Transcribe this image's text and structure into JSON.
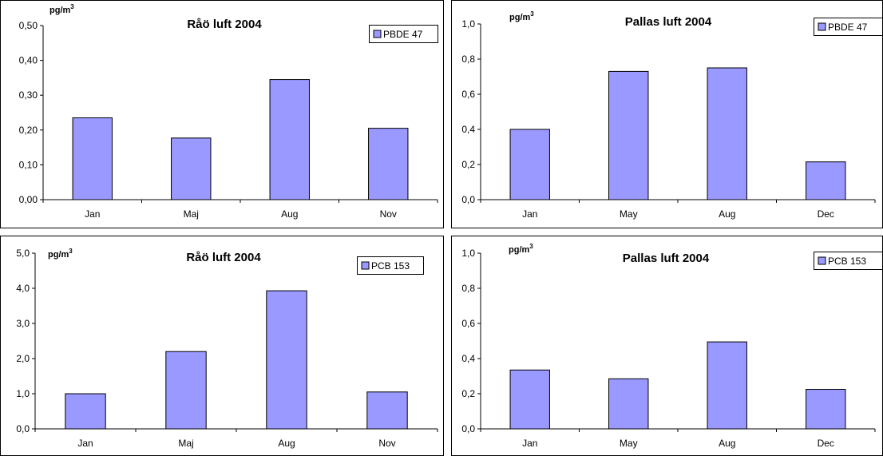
{
  "chart_data": [
    {
      "type": "bar",
      "title": "Råö luft 2004",
      "unit_label": "pg/m",
      "unit_sup": "3",
      "legend": "PBDE 47",
      "categories": [
        "Jan",
        "Maj",
        "Aug",
        "Nov"
      ],
      "values": [
        0.235,
        0.177,
        0.345,
        0.205
      ],
      "yticks": [
        "0,00",
        "0,10",
        "0,20",
        "0,30",
        "0,40",
        "0,50"
      ],
      "ylim": [
        0,
        0.5
      ],
      "bar_color": "#9999ff"
    },
    {
      "type": "bar",
      "title": "Pallas luft 2004",
      "unit_label": "pg/m",
      "unit_sup": "3",
      "legend": "PBDE 47",
      "categories": [
        "Jan",
        "May",
        "Aug",
        "Dec"
      ],
      "values": [
        0.4,
        0.73,
        0.75,
        0.215
      ],
      "yticks": [
        "0,0",
        "0,2",
        "0,4",
        "0,6",
        "0,8",
        "1,0"
      ],
      "ylim": [
        0,
        1.0
      ],
      "bar_color": "#9999ff"
    },
    {
      "type": "bar",
      "title": "Råö luft 2004",
      "unit_label": "pg/m",
      "unit_sup": "3",
      "legend": "PCB 153",
      "categories": [
        "Jan",
        "Maj",
        "Aug",
        "Nov"
      ],
      "values": [
        1.0,
        2.2,
        3.93,
        1.05
      ],
      "yticks": [
        "0,0",
        "1,0",
        "2,0",
        "3,0",
        "4,0",
        "5,0"
      ],
      "ylim": [
        0,
        5.0
      ],
      "bar_color": "#9999ff"
    },
    {
      "type": "bar",
      "title": "Pallas luft 2004",
      "unit_label": "pg/m",
      "unit_sup": "3",
      "legend": "PCB 153",
      "categories": [
        "Jan",
        "May",
        "Aug",
        "Dec"
      ],
      "values": [
        0.335,
        0.285,
        0.495,
        0.225
      ],
      "yticks": [
        "0,0",
        "0,2",
        "0,4",
        "0,6",
        "0,8",
        "1,0"
      ],
      "ylim": [
        0,
        1.0
      ],
      "bar_color": "#9999ff"
    }
  ]
}
